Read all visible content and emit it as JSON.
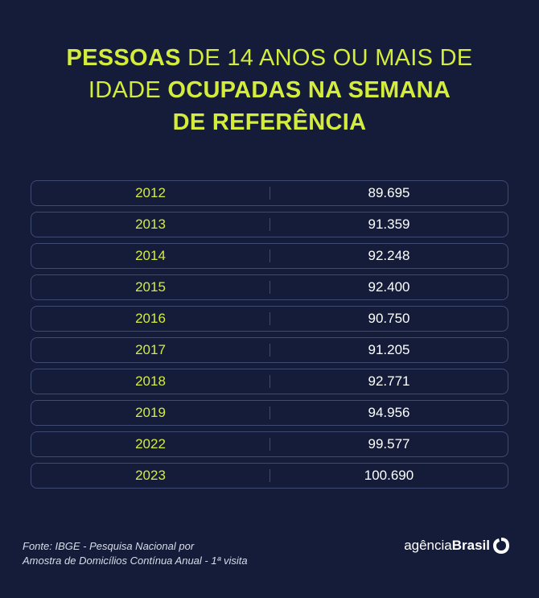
{
  "title": {
    "line1_bold": "PESSOAS",
    "line1_light": " DE 14 ANOS OU MAIS DE",
    "line2_light": "IDADE ",
    "line2_bold": "OCUPADAS NA SEMANA",
    "line3_bold": "DE REFERÊNCIA"
  },
  "chart_data": {
    "type": "table",
    "title": "PESSOAS DE 14 ANOS OU MAIS DE IDADE OCUPADAS NA SEMANA DE REFERÊNCIA",
    "categories": [
      "2012",
      "2013",
      "2014",
      "2015",
      "2016",
      "2017",
      "2018",
      "2019",
      "2022",
      "2023"
    ],
    "values": [
      89.695,
      91.359,
      92.248,
      92.4,
      90.75,
      91.205,
      92.771,
      94.956,
      99.577,
      100.69
    ],
    "rows": [
      {
        "year": "2012",
        "value": "89.695"
      },
      {
        "year": "2013",
        "value": "91.359"
      },
      {
        "year": "2014",
        "value": "92.248"
      },
      {
        "year": "2015",
        "value": "92.400"
      },
      {
        "year": "2016",
        "value": "90.750"
      },
      {
        "year": "2017",
        "value": "91.205"
      },
      {
        "year": "2018",
        "value": "92.771"
      },
      {
        "year": "2019",
        "value": "94.956"
      },
      {
        "year": "2022",
        "value": "99.577"
      },
      {
        "year": "2023",
        "value": "100.690"
      }
    ]
  },
  "footer": {
    "source_line1": "Fonte: IBGE - Pesquisa Nacional por",
    "source_line2": "Amostra de Domicílios Contínua Anual - 1ª visita",
    "logo_light": "agência",
    "logo_bold": "Brasil"
  },
  "colors": {
    "background": "#141c3a",
    "accent": "#d4ec3a",
    "border": "#3f4a73"
  }
}
